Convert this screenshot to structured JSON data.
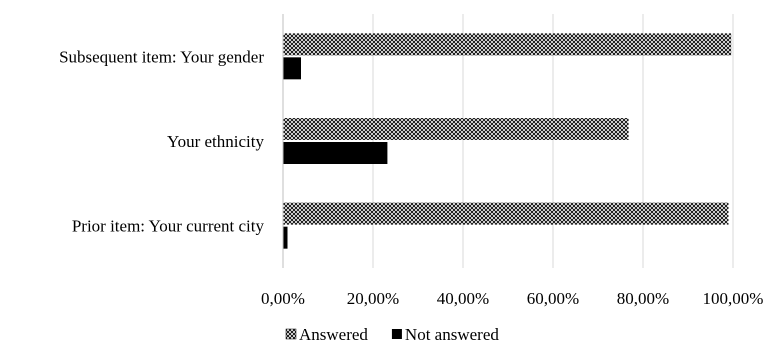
{
  "chart_data": {
    "type": "bar",
    "orientation": "horizontal",
    "categories": [
      "Subsequent item: Your gender",
      "Your ethnicity",
      "Prior item: Your current city"
    ],
    "series": [
      {
        "name": "Answered",
        "values": [
          99.6,
          76.8,
          99.0
        ],
        "color": "#000000",
        "pattern": "crosshatch"
      },
      {
        "name": "Not answered",
        "values": [
          4.0,
          23.2,
          1.0
        ],
        "color": "#000000",
        "pattern": "solid"
      }
    ],
    "xlim": [
      0,
      100
    ],
    "xticks": [
      0,
      20,
      40,
      60,
      80,
      100
    ],
    "xtick_labels": [
      "0,00%",
      "20,00%",
      "40,00%",
      "60,00%",
      "80,00%",
      "100,00%"
    ],
    "title": "",
    "xlabel": "",
    "ylabel": "",
    "grid": "vertical",
    "legend": "bottom-center"
  }
}
